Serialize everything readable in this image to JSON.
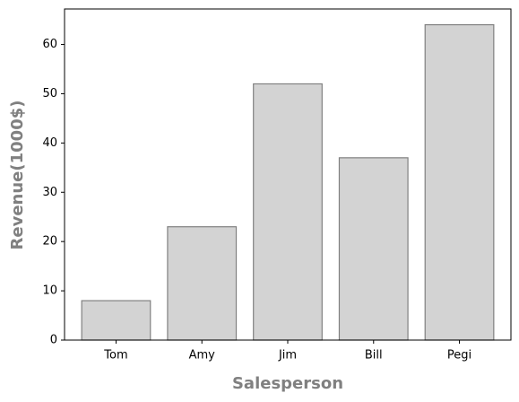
{
  "chart_data": {
    "type": "bar",
    "categories": [
      "Tom",
      "Amy",
      "Jim",
      "Bill",
      "Pegi"
    ],
    "values": [
      8,
      23,
      52,
      37,
      64
    ],
    "color": "#d3d3d3",
    "edgecolor": "#808080",
    "xlabel": "Salesperson",
    "ylabel": "Revenue(1000$)",
    "ylim": [
      0,
      67.2
    ],
    "yticks": [
      0,
      10,
      20,
      30,
      40,
      50,
      60
    ]
  }
}
